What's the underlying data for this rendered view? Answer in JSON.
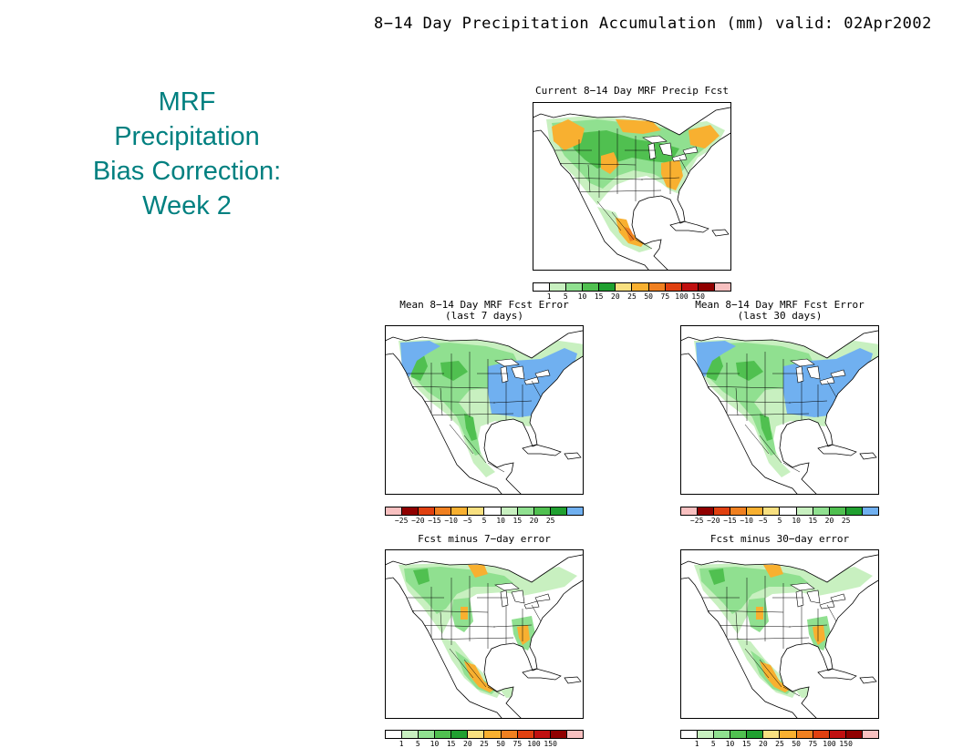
{
  "main_title": "8−14 Day Precipitation Accumulation (mm) valid: 02Apr2002",
  "side_title": [
    "MRF",
    "Precipitation",
    "Bias Correction:",
    "Week 2"
  ],
  "precip_scale": {
    "colors": [
      "#ffffff",
      "#c8f0c0",
      "#90e090",
      "#50c050",
      "#20a030",
      "#f8e080",
      "#f8b030",
      "#f08020",
      "#e04010",
      "#c01010",
      "#900000",
      "#f8c0c0"
    ],
    "labels": [
      "1",
      "5",
      "10",
      "15",
      "20",
      "25",
      "50",
      "75",
      "100",
      "150"
    ]
  },
  "error_scale": {
    "colors": [
      "#f8c0c0",
      "#900000",
      "#e04010",
      "#f08020",
      "#f8b030",
      "#f8e080",
      "#ffffff",
      "#c8f0c0",
      "#90e090",
      "#50c050",
      "#20a030",
      "#70b0f0"
    ],
    "labels": [
      "−25",
      "−20",
      "−15",
      "−10",
      "−5",
      "5",
      "10",
      "15",
      "20",
      "25"
    ]
  },
  "panels": {
    "current": {
      "title_lines": [
        "Current 8−14 Day MRF Precip Fcst"
      ],
      "scale": "precip_scale"
    },
    "err7": {
      "title_lines": [
        "Mean 8−14 Day MRF Fcst Error",
        "(last 7 days)"
      ],
      "scale": "error_scale"
    },
    "err30": {
      "title_lines": [
        "Mean 8−14 Day MRF Fcst Error",
        "(last 30 days)"
      ],
      "scale": "error_scale"
    },
    "fm7": {
      "title_lines": [
        "Fcst minus 7−day error"
      ],
      "scale": "precip_scale"
    },
    "fm30": {
      "title_lines": [
        "Fcst minus 30−day error"
      ],
      "scale": "precip_scale"
    }
  }
}
